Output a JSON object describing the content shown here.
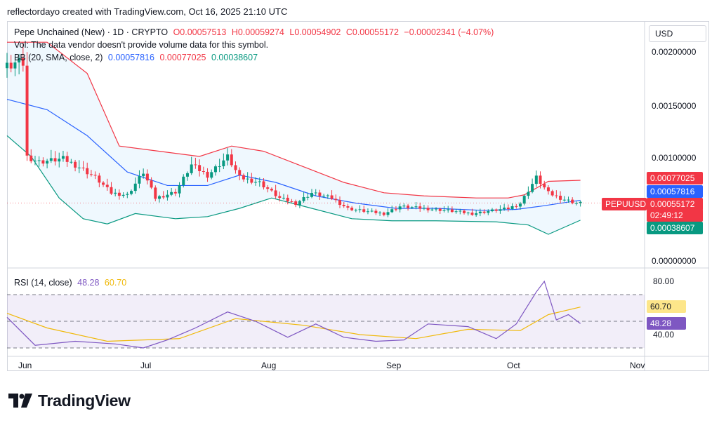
{
  "header": {
    "attribution": "reflectordayo created with TradingView.com, Oct 16, 2025 21:10 UTC"
  },
  "legend": {
    "symbol": "Pepe Unchained (New) · 1D · CRYPTO",
    "open": "O0.00057513",
    "high": "H0.00059274",
    "low": "L0.00054902",
    "close": "C0.00055172",
    "change": "−0.00002341 (−4.07%)",
    "vol_note": "Vol: The data vendor doesn't provide volume data for this symbol.",
    "bb_label": "BB (20, SMA, close, 2)",
    "bb_basis": "0.00057816",
    "bb_upper": "0.00077025",
    "bb_lower": "0.00038607",
    "rsi_label": "RSI (14, close)",
    "rsi_value": "48.28",
    "rsi_ma": "60.70"
  },
  "price_axis": {
    "currency": "USD",
    "ticks": [
      "0.00200000",
      "0.00150000",
      "0.00100000",
      "0.00000000"
    ]
  },
  "price_tags": {
    "upper": "0.00077025",
    "basis": "0.00057816",
    "symbol": "PEPUUSD",
    "close": "0.00055172",
    "countdown": "02:49:12",
    "lower": "0.00038607"
  },
  "rsi_axis": {
    "ticks": [
      "80.00",
      "40.00"
    ],
    "value_tag": "48.28",
    "ma_tag": "60.70"
  },
  "time_axis": {
    "labels": [
      "Jun",
      "Jul",
      "Aug",
      "Sep",
      "Oct",
      "Nov"
    ]
  },
  "brand": {
    "name": "TradingView"
  },
  "colors": {
    "up": "#089981",
    "down": "#f23645",
    "basis": "#2962ff",
    "rsi": "#7e57c2",
    "rsi_ma": "#f0b90b"
  },
  "chart_data": {
    "type": "candlestick",
    "symbol": "PEPUUSD",
    "interval": "1D",
    "x_range": [
      "2025-05-26",
      "2025-11-01"
    ],
    "y_range": [
      0,
      0.0022
    ],
    "close_path": [
      {
        "date": "2025-05-26",
        "value": 0.00185
      },
      {
        "date": "2025-05-29",
        "value": 0.0019
      },
      {
        "date": "2025-05-31",
        "value": 0.0019
      },
      {
        "date": "2025-06-01",
        "value": 0.001
      },
      {
        "date": "2025-06-04",
        "value": 0.00095
      },
      {
        "date": "2025-06-10",
        "value": 0.00098
      },
      {
        "date": "2025-06-14",
        "value": 0.0009
      },
      {
        "date": "2025-06-18",
        "value": 0.0008
      },
      {
        "date": "2025-06-22",
        "value": 0.00065
      },
      {
        "date": "2025-06-26",
        "value": 0.00063
      },
      {
        "date": "2025-06-30",
        "value": 0.00085
      },
      {
        "date": "2025-07-03",
        "value": 0.0006
      },
      {
        "date": "2025-07-08",
        "value": 0.00066
      },
      {
        "date": "2025-07-12",
        "value": 0.00092
      },
      {
        "date": "2025-07-16",
        "value": 0.00082
      },
      {
        "date": "2025-07-21",
        "value": 0.001
      },
      {
        "date": "2025-07-24",
        "value": 0.0008
      },
      {
        "date": "2025-07-29",
        "value": 0.00075
      },
      {
        "date": "2025-08-03",
        "value": 0.0006
      },
      {
        "date": "2025-08-07",
        "value": 0.00055
      },
      {
        "date": "2025-08-11",
        "value": 0.00065
      },
      {
        "date": "2025-08-16",
        "value": 0.0006
      },
      {
        "date": "2025-08-20",
        "value": 0.0005
      },
      {
        "date": "2025-08-25",
        "value": 0.00047
      },
      {
        "date": "2025-08-29",
        "value": 0.00045
      },
      {
        "date": "2025-09-02",
        "value": 0.00052
      },
      {
        "date": "2025-09-08",
        "value": 0.0005
      },
      {
        "date": "2025-09-14",
        "value": 0.00048
      },
      {
        "date": "2025-09-20",
        "value": 0.00045
      },
      {
        "date": "2025-09-25",
        "value": 0.00048
      },
      {
        "date": "2025-09-29",
        "value": 0.0005
      },
      {
        "date": "2025-10-02",
        "value": 0.00055
      },
      {
        "date": "2025-10-06",
        "value": 0.0008
      },
      {
        "date": "2025-10-09",
        "value": 0.00065
      },
      {
        "date": "2025-10-12",
        "value": 0.0006
      },
      {
        "date": "2025-10-16",
        "value": 0.00055172
      }
    ],
    "bb_upper": [
      {
        "date": "2025-05-26",
        "value": 0.0021
      },
      {
        "date": "2025-06-05",
        "value": 0.0021
      },
      {
        "date": "2025-06-15",
        "value": 0.0018
      },
      {
        "date": "2025-06-23",
        "value": 0.0011
      },
      {
        "date": "2025-07-03",
        "value": 0.00105
      },
      {
        "date": "2025-07-13",
        "value": 0.001
      },
      {
        "date": "2025-07-21",
        "value": 0.0011
      },
      {
        "date": "2025-07-29",
        "value": 0.00105
      },
      {
        "date": "2025-08-08",
        "value": 0.0009
      },
      {
        "date": "2025-08-18",
        "value": 0.00075
      },
      {
        "date": "2025-08-28",
        "value": 0.00065
      },
      {
        "date": "2025-09-07",
        "value": 0.00062
      },
      {
        "date": "2025-09-20",
        "value": 0.0006
      },
      {
        "date": "2025-09-28",
        "value": 0.0006
      },
      {
        "date": "2025-10-02",
        "value": 0.00063
      },
      {
        "date": "2025-10-08",
        "value": 0.00076
      },
      {
        "date": "2025-10-16",
        "value": 0.00077025
      }
    ],
    "bb_basis": [
      {
        "date": "2025-05-26",
        "value": 0.00155
      },
      {
        "date": "2025-06-05",
        "value": 0.00145
      },
      {
        "date": "2025-06-15",
        "value": 0.0012
      },
      {
        "date": "2025-06-25",
        "value": 0.00085
      },
      {
        "date": "2025-07-05",
        "value": 0.00072
      },
      {
        "date": "2025-07-15",
        "value": 0.00072
      },
      {
        "date": "2025-07-23",
        "value": 0.00082
      },
      {
        "date": "2025-08-01",
        "value": 0.00075
      },
      {
        "date": "2025-08-11",
        "value": 0.00062
      },
      {
        "date": "2025-08-21",
        "value": 0.00055
      },
      {
        "date": "2025-08-31",
        "value": 0.0005
      },
      {
        "date": "2025-09-10",
        "value": 0.0005
      },
      {
        "date": "2025-09-22",
        "value": 0.00048
      },
      {
        "date": "2025-09-30",
        "value": 0.00049
      },
      {
        "date": "2025-10-06",
        "value": 0.00052
      },
      {
        "date": "2025-10-16",
        "value": 0.00057816
      }
    ],
    "bb_lower": [
      {
        "date": "2025-05-26",
        "value": 0.0012
      },
      {
        "date": "2025-06-01",
        "value": 0.001
      },
      {
        "date": "2025-06-08",
        "value": 0.0006
      },
      {
        "date": "2025-06-14",
        "value": 0.0004
      },
      {
        "date": "2025-06-20",
        "value": 0.00035
      },
      {
        "date": "2025-06-27",
        "value": 0.00045
      },
      {
        "date": "2025-07-07",
        "value": 0.0004
      },
      {
        "date": "2025-07-15",
        "value": 0.00042
      },
      {
        "date": "2025-07-23",
        "value": 0.0005
      },
      {
        "date": "2025-07-31",
        "value": 0.0006
      },
      {
        "date": "2025-08-10",
        "value": 0.0005
      },
      {
        "date": "2025-08-20",
        "value": 0.0004
      },
      {
        "date": "2025-08-30",
        "value": 0.00038
      },
      {
        "date": "2025-09-10",
        "value": 0.00038
      },
      {
        "date": "2025-09-25",
        "value": 0.00037
      },
      {
        "date": "2025-10-03",
        "value": 0.00034
      },
      {
        "date": "2025-10-08",
        "value": 0.00025
      },
      {
        "date": "2025-10-16",
        "value": 0.00038607
      }
    ],
    "rsi": [
      {
        "date": "2025-05-26",
        "value": 53
      },
      {
        "date": "2025-06-02",
        "value": 32
      },
      {
        "date": "2025-06-12",
        "value": 35
      },
      {
        "date": "2025-06-22",
        "value": 33
      },
      {
        "date": "2025-06-29",
        "value": 30
      },
      {
        "date": "2025-07-05",
        "value": 36
      },
      {
        "date": "2025-07-12",
        "value": 45
      },
      {
        "date": "2025-07-20",
        "value": 57
      },
      {
        "date": "2025-07-27",
        "value": 50
      },
      {
        "date": "2025-08-04",
        "value": 38
      },
      {
        "date": "2025-08-11",
        "value": 48
      },
      {
        "date": "2025-08-18",
        "value": 38
      },
      {
        "date": "2025-08-26",
        "value": 35
      },
      {
        "date": "2025-09-02",
        "value": 36
      },
      {
        "date": "2025-09-08",
        "value": 48
      },
      {
        "date": "2025-09-18",
        "value": 46
      },
      {
        "date": "2025-09-25",
        "value": 37
      },
      {
        "date": "2025-09-30",
        "value": 48
      },
      {
        "date": "2025-10-05",
        "value": 72
      },
      {
        "date": "2025-10-07",
        "value": 80
      },
      {
        "date": "2025-10-10",
        "value": 51
      },
      {
        "date": "2025-10-13",
        "value": 55
      },
      {
        "date": "2025-10-16",
        "value": 48.28
      }
    ],
    "rsi_ma": [
      {
        "date": "2025-05-26",
        "value": 56
      },
      {
        "date": "2025-06-05",
        "value": 45
      },
      {
        "date": "2025-06-20",
        "value": 35
      },
      {
        "date": "2025-07-08",
        "value": 37
      },
      {
        "date": "2025-07-22",
        "value": 52
      },
      {
        "date": "2025-08-08",
        "value": 47
      },
      {
        "date": "2025-08-22",
        "value": 40
      },
      {
        "date": "2025-09-05",
        "value": 37
      },
      {
        "date": "2025-09-18",
        "value": 44
      },
      {
        "date": "2025-10-01",
        "value": 43
      },
      {
        "date": "2025-10-08",
        "value": 55
      },
      {
        "date": "2025-10-16",
        "value": 60.7
      }
    ],
    "rsi_bands": {
      "upper": 70,
      "middle": 50,
      "lower": 30
    }
  }
}
